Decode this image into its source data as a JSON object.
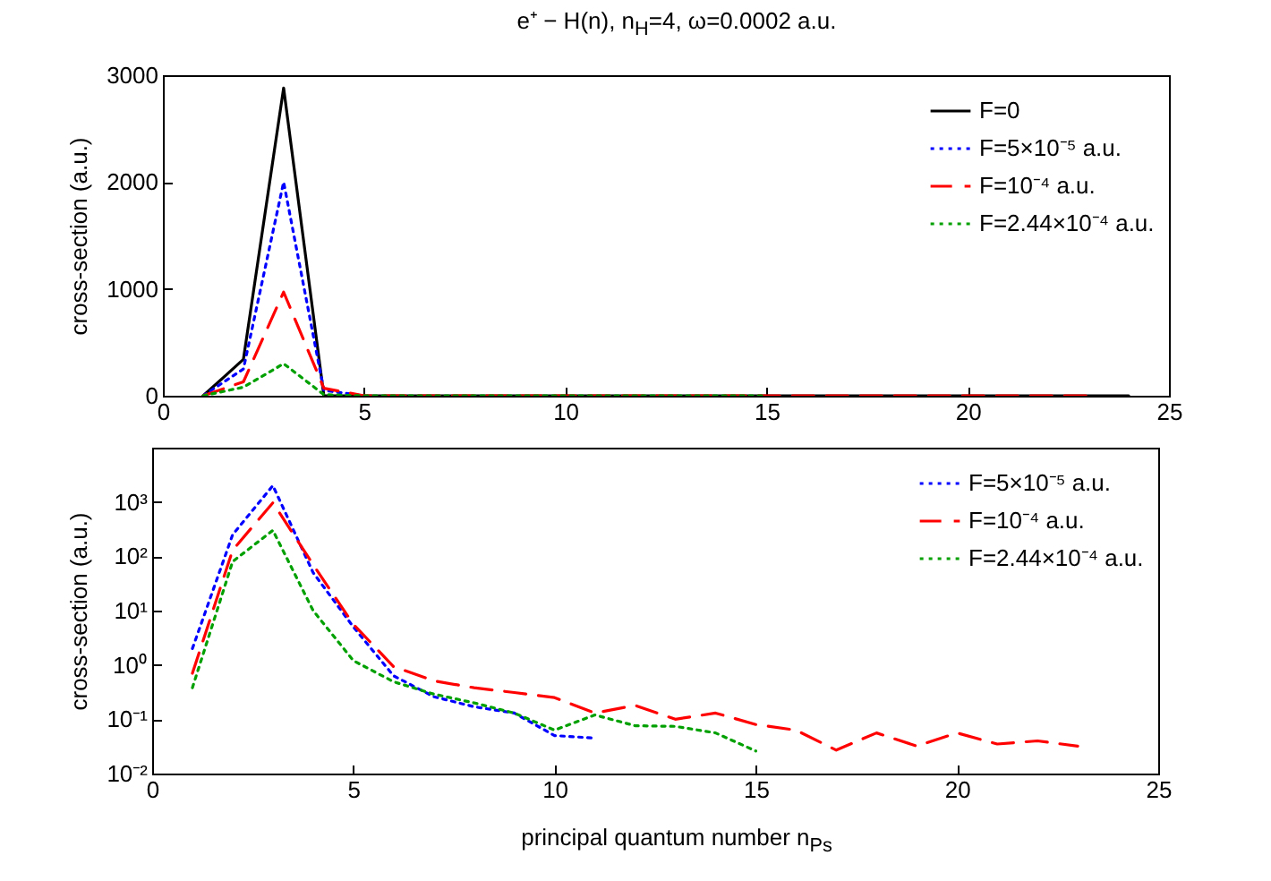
{
  "chart_data": [
    {
      "type": "line",
      "title": "e⁺ − H(n), n$_{H}$=4, ω=0.0002 a.u.",
      "ylabel": "cross-section (a.u.)",
      "x": [
        1,
        2,
        3,
        4,
        5,
        6,
        7,
        8,
        9,
        10,
        11,
        12,
        13,
        14,
        15,
        16,
        17,
        18,
        19,
        20,
        21,
        22,
        23,
        24
      ],
      "xlim": [
        0,
        25
      ],
      "xticks": [
        0,
        5,
        10,
        15,
        20,
        25
      ],
      "ylim": [
        0,
        3000
      ],
      "yticks": [
        0,
        1000,
        2000,
        3000
      ],
      "legend": "top right",
      "series": [
        {
          "name": "F=0",
          "color": "#000000",
          "line_style": "solid",
          "values": [
            0,
            340,
            2880,
            0,
            0,
            0,
            0,
            0,
            0,
            0,
            0,
            0,
            0,
            0,
            0,
            0,
            0,
            0,
            0,
            0,
            0,
            0,
            0,
            0
          ]
        },
        {
          "name": "F=5×10⁻⁵ a.u.",
          "color": "#0000ff",
          "line_style": "dotted",
          "values": [
            0,
            250,
            2000,
            50,
            0,
            null,
            null,
            null,
            null,
            null,
            null,
            null,
            null,
            null,
            null,
            null,
            null,
            null,
            null,
            null,
            null,
            null,
            null,
            null
          ]
        },
        {
          "name": "F=10⁻⁴ a.u.",
          "color": "#ff0000",
          "line_style": "dashed",
          "values": [
            0,
            130,
            970,
            70,
            0,
            0,
            0,
            0,
            0,
            0,
            0,
            0,
            0,
            0,
            0,
            0,
            0,
            0,
            0,
            0,
            0,
            0,
            0,
            null
          ]
        },
        {
          "name": "F=2.44×10⁻⁴ a.u.",
          "color": "#00a000",
          "line_style": "dotted",
          "values": [
            0,
            80,
            300,
            10,
            0,
            0,
            0,
            0,
            0,
            0,
            0,
            0,
            0,
            0,
            0,
            null,
            null,
            null,
            null,
            null,
            null,
            null,
            null,
            null
          ]
        }
      ]
    },
    {
      "type": "line",
      "xlabel": "principal quantum number n$_{Ps}$",
      "ylabel": "cross-section (a.u.)",
      "log": true,
      "x": [
        1,
        2,
        3,
        4,
        5,
        6,
        7,
        8,
        9,
        10,
        11,
        12,
        13,
        14,
        15,
        16,
        17,
        18,
        19,
        20,
        21,
        22,
        23
      ],
      "xlim": [
        0,
        25
      ],
      "xticks": [
        0,
        5,
        10,
        15,
        20,
        25
      ],
      "ylim": [
        0.01,
        10000
      ],
      "yticks": [
        {
          "value": 0.01,
          "label": "10⁻²"
        },
        {
          "value": 0.1,
          "label": "10⁻¹"
        },
        {
          "value": 1,
          "label": "10⁰"
        },
        {
          "value": 10,
          "label": "10¹"
        },
        {
          "value": 100,
          "label": "10²"
        },
        {
          "value": 1000,
          "label": "10³"
        }
      ],
      "legend": "top right",
      "series": [
        {
          "name": "F=5×10⁻⁵ a.u.",
          "color": "#0000ff",
          "line_style": "dotted",
          "values": [
            2,
            250,
            2000,
            50,
            5,
            0.63,
            0.26,
            0.17,
            0.13,
            0.05,
            0.045,
            null,
            null,
            null,
            null,
            null,
            null,
            null,
            null,
            null,
            null,
            null,
            null
          ]
        },
        {
          "name": "F=10⁻⁴ a.u.",
          "color": "#ff0000",
          "line_style": "dashed",
          "values": [
            0.7,
            130,
            970,
            70,
            5.6,
            0.93,
            0.51,
            0.38,
            0.31,
            0.25,
            0.13,
            0.18,
            0.1,
            0.13,
            0.08,
            0.063,
            0.027,
            0.056,
            0.032,
            0.056,
            0.035,
            0.04,
            0.032
          ]
        },
        {
          "name": "F=2.44×10⁻⁴ a.u.",
          "color": "#00a000",
          "line_style": "dotted",
          "values": [
            0.38,
            80,
            300,
            10,
            1.2,
            0.49,
            0.29,
            0.2,
            0.13,
            0.063,
            0.12,
            0.076,
            0.074,
            0.056,
            0.026,
            null,
            null,
            null,
            null,
            null,
            null,
            null,
            null
          ]
        }
      ]
    }
  ]
}
